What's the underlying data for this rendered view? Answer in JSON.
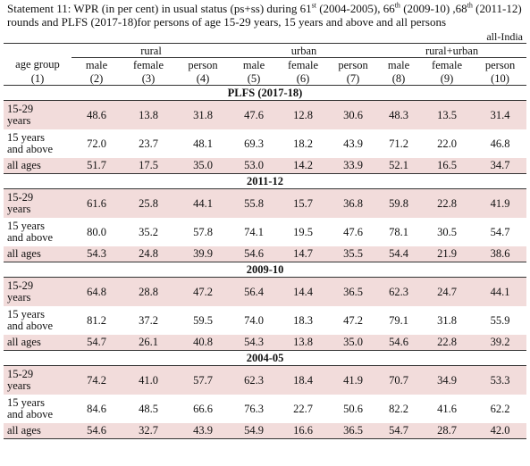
{
  "title_parts": [
    {
      "t": "Statement 11: WPR (in per cent) in  usual status (ps+ss) during  61"
    },
    {
      "s": "st"
    },
    {
      "t": " (2004-2005),  66"
    },
    {
      "s": "th"
    },
    {
      "t": " (2009-10) ,68"
    },
    {
      "s": "th"
    },
    {
      "t": " (2011-12) rounds and PLFS (2017-18)for persons of age 15-29 years, 15 years and above and all persons"
    }
  ],
  "region": "all-India",
  "headers": {
    "groups": [
      "rural",
      "urban",
      "rural+urban"
    ],
    "age_group": "age group",
    "columns": [
      "male",
      "female",
      "person",
      "male",
      "female",
      "person",
      "male",
      "female",
      "person"
    ],
    "numbers": [
      "(1)",
      "(2)",
      "(3)",
      "(4)",
      "(5)",
      "(6)",
      "(7)",
      "(8)",
      "(9)",
      "(10)"
    ]
  },
  "sections": [
    {
      "name": "PLFS (2017-18)",
      "rows": [
        {
          "label": [
            "15-29",
            "years"
          ],
          "values": [
            "48.6",
            "13.8",
            "31.8",
            "47.6",
            "12.8",
            "30.6",
            "48.3",
            "13.5",
            "31.4"
          ]
        },
        {
          "label": [
            "15 years",
            "and above"
          ],
          "values": [
            "72.0",
            "23.7",
            "48.1",
            "69.3",
            "18.2",
            "43.9",
            "71.2",
            "22.0",
            "46.8"
          ]
        },
        {
          "label": [
            "all ages"
          ],
          "values": [
            "51.7",
            "17.5",
            "35.0",
            "53.0",
            "14.2",
            "33.9",
            "52.1",
            "16.5",
            "34.7"
          ]
        }
      ]
    },
    {
      "name": "2011-12",
      "rows": [
        {
          "label": [
            "15-29",
            "years"
          ],
          "values": [
            "61.6",
            "25.8",
            "44.1",
            "55.8",
            "15.7",
            "36.8",
            "59.8",
            "22.8",
            "41.9"
          ]
        },
        {
          "label": [
            "15 years",
            "and above"
          ],
          "values": [
            "80.0",
            "35.2",
            "57.8",
            "74.1",
            "19.5",
            "47.6",
            "78.1",
            "30.5",
            "54.7"
          ]
        },
        {
          "label": [
            "all ages"
          ],
          "values": [
            "54.3",
            "24.8",
            "39.9",
            "54.6",
            "14.7",
            "35.5",
            "54.4",
            "21.9",
            "38.6"
          ]
        }
      ]
    },
    {
      "name": "2009-10",
      "rows": [
        {
          "label": [
            "15-29",
            "years"
          ],
          "values": [
            "64.8",
            "28.8",
            "47.2",
            "56.4",
            "14.4",
            "36.5",
            "62.3",
            "24.7",
            "44.1"
          ]
        },
        {
          "label": [
            "15 years",
            "and above"
          ],
          "values": [
            "81.2",
            "37.2",
            "59.5",
            "74.0",
            "18.3",
            "47.2",
            "79.1",
            "31.8",
            "55.9"
          ]
        },
        {
          "label": [
            "all ages"
          ],
          "values": [
            "54.7",
            "26.1",
            "40.8",
            "54.3",
            "13.8",
            "35.0",
            "54.6",
            "22.8",
            "39.2"
          ]
        }
      ]
    },
    {
      "name": "2004-05",
      "rows": [
        {
          "label": [
            "15-29",
            "years"
          ],
          "values": [
            "74.2",
            "41.0",
            "57.7",
            "62.3",
            "18.4",
            "41.9",
            "70.7",
            "34.9",
            "53.3"
          ]
        },
        {
          "label": [
            "15 years",
            "and above"
          ],
          "values": [
            "84.6",
            "48.5",
            "66.6",
            "76.3",
            "22.7",
            "50.6",
            "82.2",
            "41.6",
            "62.2"
          ]
        },
        {
          "label": [
            "all ages"
          ],
          "values": [
            "54.6",
            "32.7",
            "43.9",
            "54.9",
            "16.6",
            "36.5",
            "54.7",
            "28.7",
            "42.0"
          ]
        }
      ]
    }
  ]
}
